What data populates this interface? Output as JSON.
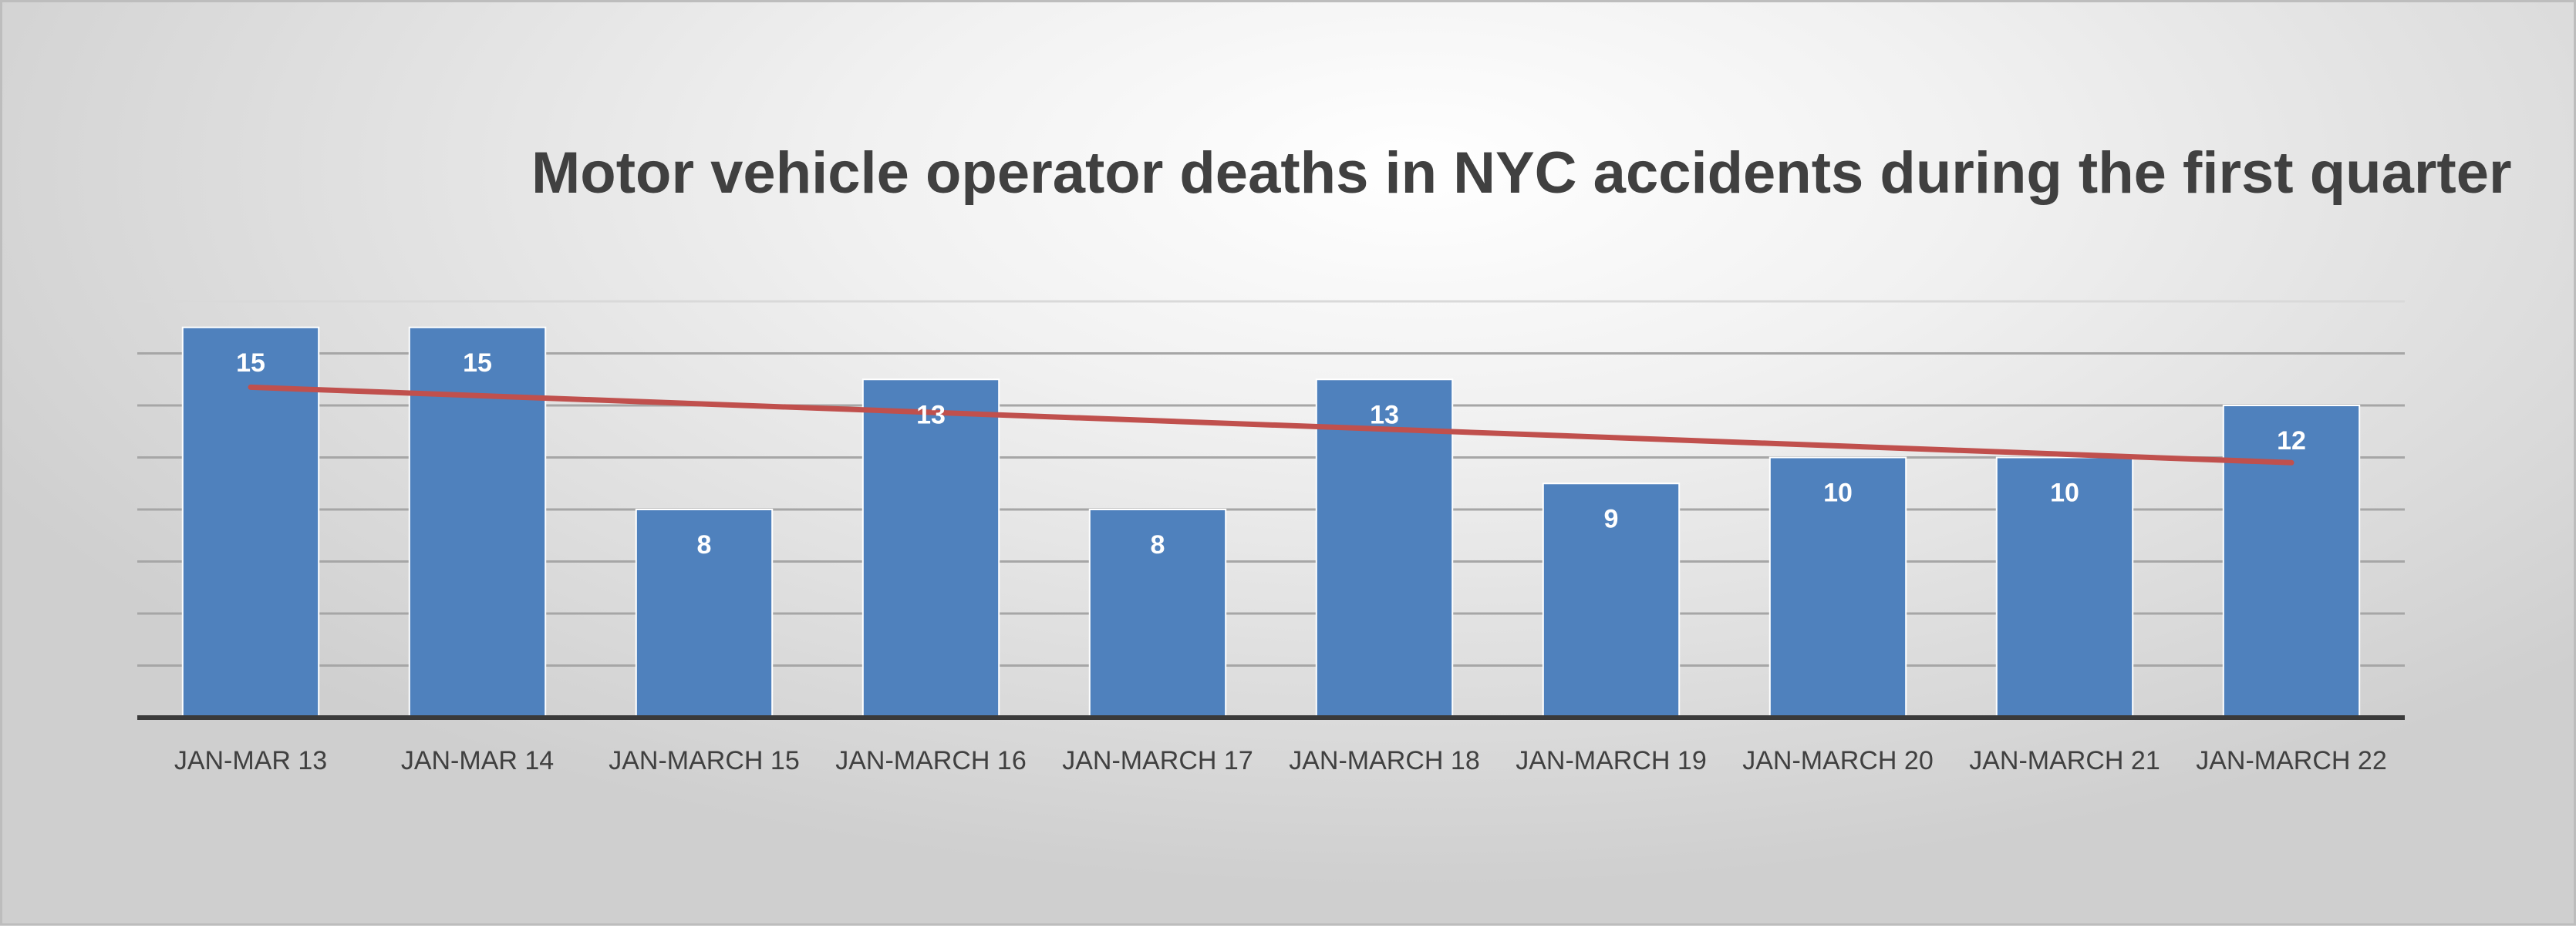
{
  "chart_data": {
    "type": "bar",
    "title": "Motor vehicle operator deaths in NYC accidents during the first quarter",
    "categories": [
      "JAN-MAR 13",
      "JAN-MAR 14",
      "JAN-MARCH 15",
      "JAN-MARCH 16",
      "JAN-MARCH 17",
      "JAN-MARCH 18",
      "JAN-MARCH 19",
      "JAN-MARCH 20",
      "JAN-MARCH 21",
      "JAN-MARCH 22"
    ],
    "series": [
      {
        "type": "bar",
        "values": [
          15,
          15,
          8,
          13,
          8,
          13,
          9,
          10,
          10,
          12
        ],
        "color": "#4f81bd",
        "data_labels": true
      },
      {
        "type": "linear-trendline",
        "start": 12.7,
        "end": 9.8,
        "color": "#c0504d"
      }
    ],
    "xlabel": "",
    "ylabel": "",
    "ylim": [
      0,
      16
    ],
    "grid": true,
    "legend": "none",
    "y_tick_labels_shown": false
  }
}
